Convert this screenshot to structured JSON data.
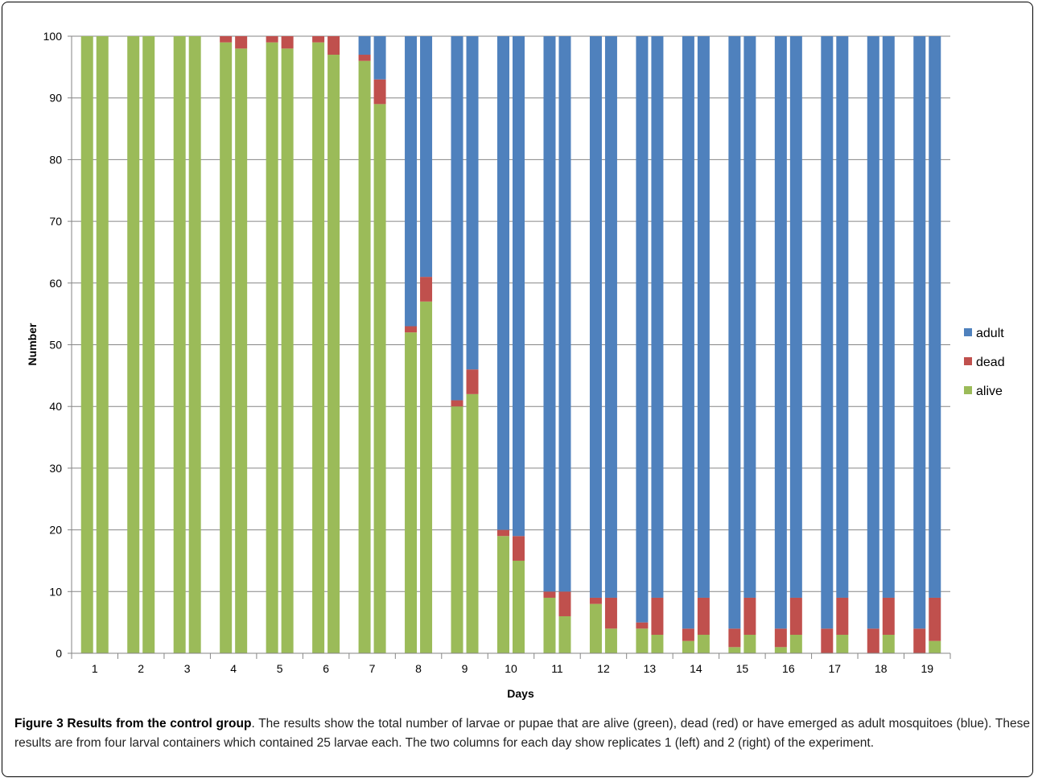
{
  "caption": {
    "title": "Figure 3 Results from the control group",
    "body": ". The results show the total number of larvae or pupae that are alive (green), dead (red) or have emerged as adult mosquitoes (blue). These results are from four larval containers which contained 25 larvae each. The two columns for each day show replicates 1 (left) and 2 (right) of the experiment."
  },
  "chart_data": {
    "type": "bar",
    "stacked": true,
    "title": "",
    "xlabel": "Days",
    "ylabel": "Number",
    "ylim": [
      0,
      100
    ],
    "yticks": [
      0,
      10,
      20,
      30,
      40,
      50,
      60,
      70,
      80,
      90,
      100
    ],
    "grid": "horizontal",
    "legend_position": "right",
    "categories": [
      "1",
      "2",
      "3",
      "4",
      "5",
      "6",
      "7",
      "8",
      "9",
      "10",
      "11",
      "12",
      "13",
      "14",
      "15",
      "16",
      "17",
      "18",
      "19"
    ],
    "bars_per_category": [
      "replicate 1 (left)",
      "replicate 2 (right)"
    ],
    "series": [
      {
        "name": "alive",
        "color": "#9BBB59",
        "replicate_1": [
          100,
          100,
          100,
          99,
          99,
          99,
          96,
          52,
          40,
          19,
          9,
          8,
          4,
          2,
          1,
          1,
          0,
          0,
          0
        ],
        "replicate_2": [
          100,
          100,
          100,
          98,
          98,
          97,
          89,
          57,
          42,
          15,
          6,
          4,
          3,
          3,
          3,
          3,
          3,
          3,
          2
        ]
      },
      {
        "name": "dead",
        "color": "#C0504D",
        "replicate_1": [
          0,
          0,
          0,
          1,
          1,
          1,
          1,
          1,
          1,
          1,
          1,
          1,
          1,
          2,
          3,
          3,
          4,
          4,
          4
        ],
        "replicate_2": [
          0,
          0,
          0,
          2,
          2,
          3,
          4,
          4,
          4,
          4,
          4,
          5,
          6,
          6,
          6,
          6,
          6,
          6,
          7
        ]
      },
      {
        "name": "adult",
        "color": "#4F81BD",
        "replicate_1": [
          0,
          0,
          0,
          0,
          0,
          0,
          3,
          47,
          59,
          80,
          90,
          91,
          95,
          96,
          96,
          96,
          96,
          96,
          96
        ],
        "replicate_2": [
          0,
          0,
          0,
          0,
          0,
          0,
          7,
          39,
          54,
          81,
          90,
          91,
          91,
          91,
          91,
          91,
          91,
          91,
          91
        ]
      }
    ],
    "legend_order": [
      "adult",
      "dead",
      "alive"
    ]
  }
}
